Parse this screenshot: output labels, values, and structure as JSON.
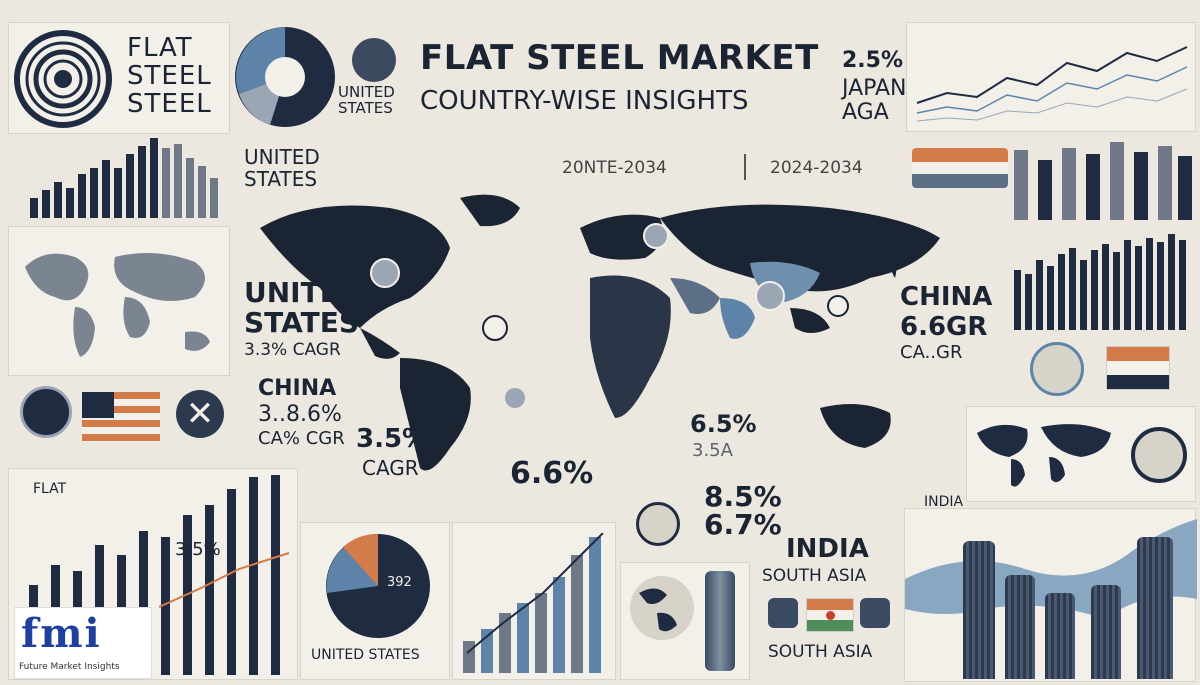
{
  "header": {
    "title": "FLAT STEEL MARKET",
    "subtitle": "COUNTRY-WISE INSIGHTS",
    "period_left": "20NTE-2034",
    "period_right": "2024-2034"
  },
  "top_left": {
    "line1": "FLAT",
    "line2": "STEEL",
    "line3": "STEEL"
  },
  "labels": {
    "us_small": "UNITED\nSTATES",
    "us_mid": "UNITED\nSTATES",
    "us_big_1": "UNITED",
    "us_big_2": "STATES",
    "us_cagr": "3.3% CAGR",
    "china_left_1": "CHINA",
    "china_left_2": "3..8.6%",
    "china_left_3": "CA% CGR",
    "cagr_35": "3.5%",
    "cagr_word": "CAGR",
    "pct_66": "6.6%",
    "pct_65": "6.5%",
    "pct_65_sub": "3.5A",
    "pct_85": "8.5%",
    "pct_67": "6.7%",
    "japan_pct": "2.5%",
    "japan": "JAPAN",
    "aga": "AGA",
    "china_right_1": "CHINA",
    "china_right_2": "6.6GR",
    "china_right_3": "CA..GR",
    "india_small": "INDIA",
    "india_big": "INDIA",
    "south_asia_1": "SOUTH ASIA",
    "south_asia_2": "SOUTH ASIA",
    "bottom_us": "UNITED STATES",
    "flat_small": "FLAT",
    "bar_pct": "3.5%",
    "pie_value": "392"
  },
  "logo": {
    "letters": "fmi",
    "caption": "Future Market Insights"
  },
  "colors": {
    "navy": "#1e2b40",
    "steel_blue": "#5d84a8",
    "gray": "#6f7886",
    "background": "#ece8df",
    "accent_orange": "#d47b4a"
  }
}
